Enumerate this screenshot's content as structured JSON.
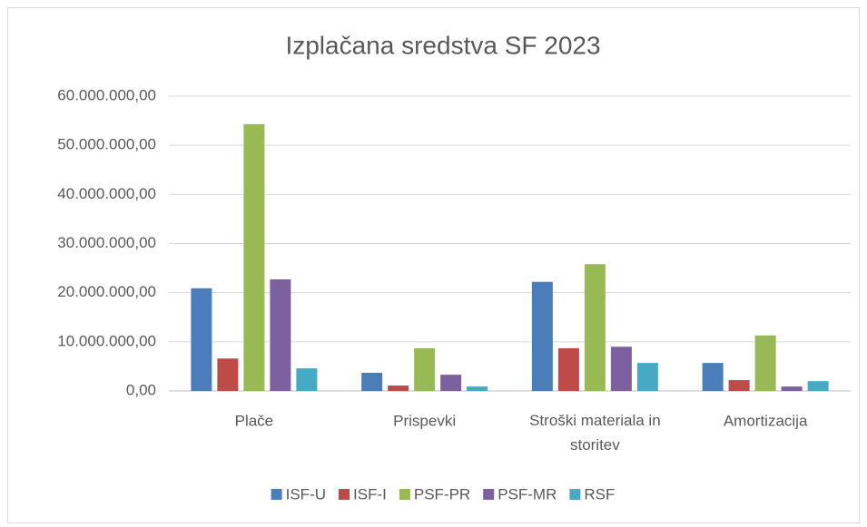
{
  "chart_data": {
    "type": "bar",
    "title": "Izplačana sredstva SF 2023",
    "categories": [
      "Plače",
      "Prispevki",
      "Stroški materiala in storitev",
      "Amortizacija"
    ],
    "series": [
      {
        "name": "ISF-U",
        "color": "#4a7ebb",
        "values": [
          20900000,
          3700000,
          22200000,
          5700000
        ]
      },
      {
        "name": "ISF-I",
        "color": "#be4b48",
        "values": [
          6600000,
          1100000,
          8700000,
          2200000
        ]
      },
      {
        "name": "PSF-PR",
        "color": "#98b954",
        "values": [
          54300000,
          8700000,
          25800000,
          11300000
        ]
      },
      {
        "name": "PSF-MR",
        "color": "#7d60a0",
        "values": [
          22700000,
          3300000,
          9000000,
          900000
        ]
      },
      {
        "name": "RSF",
        "color": "#46aac5",
        "values": [
          4600000,
          900000,
          5700000,
          2000000
        ]
      }
    ],
    "ylim": [
      0,
      60000000
    ],
    "yticks": [
      {
        "value": 0,
        "label": "0,00"
      },
      {
        "value": 10000000,
        "label": "10.000.000,00"
      },
      {
        "value": 20000000,
        "label": "20.000.000,00"
      },
      {
        "value": 30000000,
        "label": "30.000.000,00"
      },
      {
        "value": 40000000,
        "label": "40.000.000,00"
      },
      {
        "value": 50000000,
        "label": "50.000.000,00"
      },
      {
        "value": 60000000,
        "label": "60.000.000,00"
      }
    ],
    "grid": true,
    "legend": "bottom"
  }
}
